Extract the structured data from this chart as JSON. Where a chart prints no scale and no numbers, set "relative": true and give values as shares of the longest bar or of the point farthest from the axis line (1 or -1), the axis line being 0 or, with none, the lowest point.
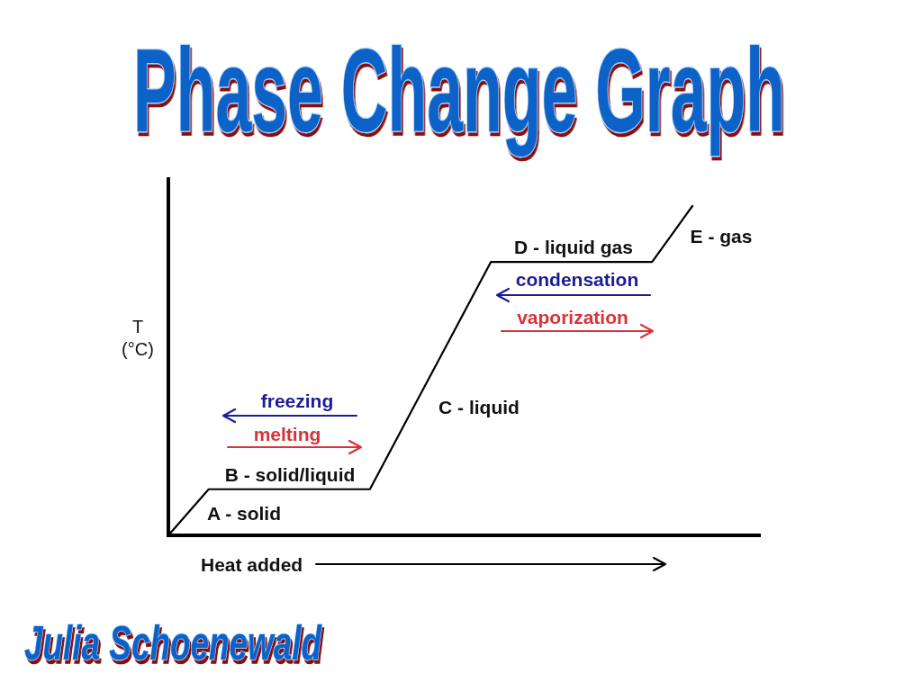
{
  "chart_data": {
    "type": "line",
    "title": "Phase Change Graph",
    "xlabel": "Heat added",
    "ylabel": "T (°C)",
    "relative": true,
    "categories": [
      null,
      null,
      null,
      null,
      null,
      null,
      null,
      null,
      null,
      null,
      null,
      null,
      null,
      null
    ],
    "values": [
      0,
      0.14,
      0.14,
      0.14,
      0.14,
      0.14,
      0.37,
      0.6,
      0.83,
      0.83,
      0.83,
      0.83,
      0.83,
      1
    ],
    "color": "#000000",
    "annotations": [
      "A - solid",
      "B - solid/liquid",
      "C - liquid",
      "D - liquid gas",
      "E - gas",
      "freezing",
      "melting",
      "condensation",
      "vaporization",
      "Julia Schoenewald"
    ]
  }
}
